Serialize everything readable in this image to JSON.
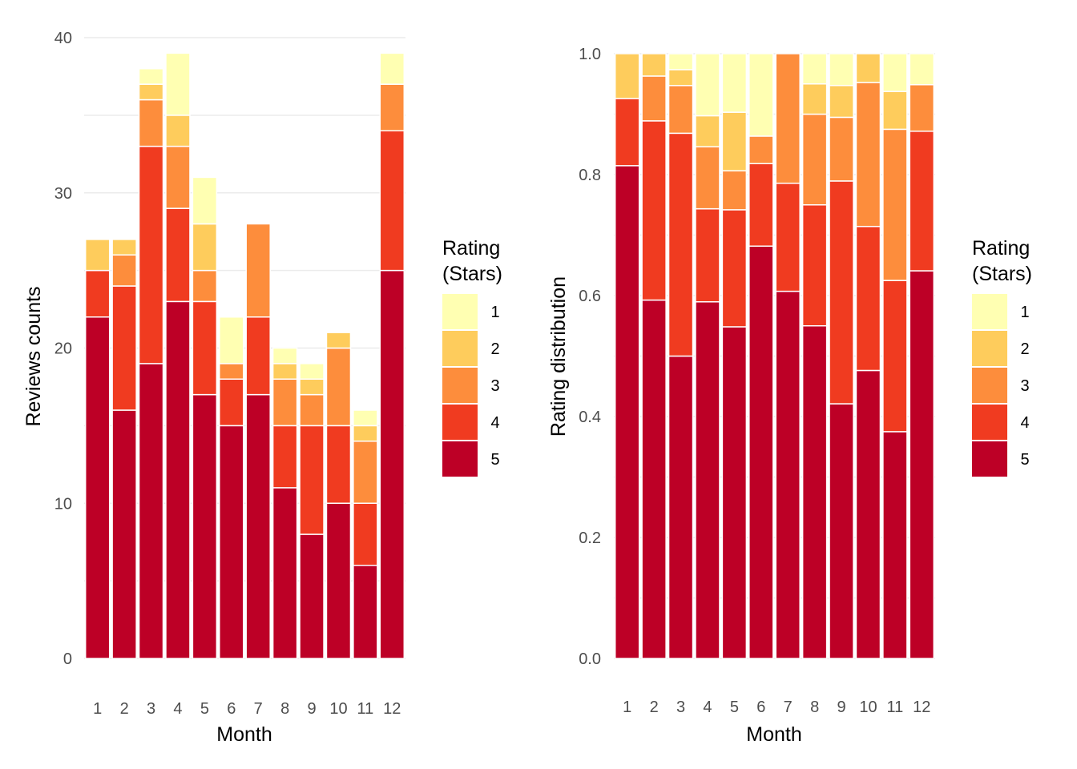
{
  "chart_data": [
    {
      "type": "bar",
      "stacked": true,
      "categories": [
        "1",
        "2",
        "3",
        "4",
        "5",
        "6",
        "7",
        "8",
        "9",
        "10",
        "11",
        "12"
      ],
      "xlabel": "Month",
      "ylabel": "Reviews counts",
      "ylim": [
        0,
        40
      ],
      "yticks": [
        "0",
        "10",
        "20",
        "30",
        "40"
      ],
      "grid": true,
      "legend": {
        "title": "Rating\n(Stars)",
        "title_lines": [
          "Rating",
          "(Stars)"
        ],
        "position": "right"
      },
      "series": [
        {
          "name": "1",
          "values": [
            0,
            0,
            1,
            4,
            3,
            3,
            0,
            1,
            1,
            0,
            1,
            2
          ]
        },
        {
          "name": "2",
          "values": [
            2,
            1,
            1,
            2,
            3,
            0,
            0,
            1,
            1,
            1,
            1,
            0
          ]
        },
        {
          "name": "3",
          "values": [
            0,
            2,
            3,
            4,
            2,
            1,
            6,
            3,
            2,
            5,
            4,
            3
          ]
        },
        {
          "name": "4",
          "values": [
            3,
            8,
            14,
            6,
            6,
            3,
            5,
            4,
            7,
            5,
            4,
            9
          ]
        },
        {
          "name": "5",
          "values": [
            22,
            16,
            19,
            23,
            17,
            15,
            17,
            11,
            8,
            10,
            6,
            25
          ]
        }
      ]
    },
    {
      "type": "bar",
      "stacked": true,
      "normalized": true,
      "categories": [
        "1",
        "2",
        "3",
        "4",
        "5",
        "6",
        "7",
        "8",
        "9",
        "10",
        "11",
        "12"
      ],
      "xlabel": "Month",
      "ylabel": "Rating distribution",
      "ylim": [
        0,
        1
      ],
      "yticks": [
        "0.0",
        "0.2",
        "0.4",
        "0.6",
        "0.8",
        "1.0"
      ],
      "grid": true,
      "legend": {
        "title": "Rating\n(Stars)",
        "title_lines": [
          "Rating",
          "(Stars)"
        ],
        "position": "right"
      },
      "series": [
        {
          "name": "1",
          "values": [
            0,
            0,
            0.0263,
            0.1026,
            0.0968,
            0.1364,
            0,
            0.05,
            0.0526,
            0,
            0.0625,
            0.0513
          ]
        },
        {
          "name": "2",
          "values": [
            0.0741,
            0.037,
            0.0263,
            0.0513,
            0.0968,
            0,
            0,
            0.05,
            0.0526,
            0.0476,
            0.0625,
            0
          ]
        },
        {
          "name": "3",
          "values": [
            0,
            0.0741,
            0.0789,
            0.1026,
            0.0645,
            0.0455,
            0.2143,
            0.15,
            0.1053,
            0.2381,
            0.25,
            0.0769
          ]
        },
        {
          "name": "4",
          "values": [
            0.1111,
            0.2963,
            0.3684,
            0.1538,
            0.1935,
            0.1364,
            0.1786,
            0.2,
            0.3684,
            0.2381,
            0.25,
            0.2308
          ]
        },
        {
          "name": "5",
          "values": [
            0.8148,
            0.5926,
            0.5,
            0.5897,
            0.5484,
            0.6818,
            0.6071,
            0.55,
            0.4211,
            0.4762,
            0.375,
            0.641
          ]
        }
      ]
    }
  ],
  "colors": {
    "1": "#ffffb2",
    "2": "#fecc5c",
    "3": "#fd8d3c",
    "4": "#f03b20",
    "5": "#bd0026"
  }
}
